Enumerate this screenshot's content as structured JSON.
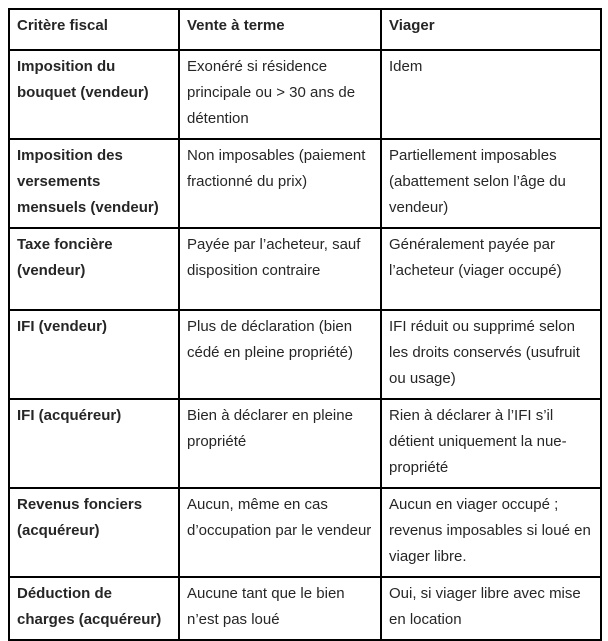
{
  "table": {
    "headers": {
      "critere": "Critère fiscal",
      "vente": "Vente à terme",
      "viager": "Viager"
    },
    "rows": [
      {
        "label": "Imposition du bouquet (vendeur)",
        "vente": "Exonéré si résidence principale ou > 30 ans de détention",
        "viager": "Idem"
      },
      {
        "label": "Imposition des versements mensuels (vendeur)",
        "vente": "Non imposables (paiement fractionné du prix)",
        "viager": "Partiellement imposables (abattement selon l’âge du vendeur)"
      },
      {
        "label": "Taxe foncière (vendeur)",
        "vente": "Payée par l’acheteur, sauf disposition contraire",
        "viager": "Généralement payée par l’acheteur (viager occupé)"
      },
      {
        "label": "IFI (vendeur)",
        "vente": "Plus de déclaration (bien cédé en pleine propriété)",
        "viager": "IFI réduit ou supprimé selon les droits conservés (usufruit ou usage)"
      },
      {
        "label": "IFI (acquéreur)",
        "vente": "Bien à déclarer en pleine propriété",
        "viager": "Rien à déclarer à l’IFI s’il détient uniquement la nue-propriété"
      },
      {
        "label": "Revenus fonciers (acquéreur)",
        "vente": "Aucun, même en cas d’occupation par le vendeur",
        "viager": "Aucun en viager occupé ; revenus imposables si loué en viager libre."
      },
      {
        "label": "Déduction de charges (acquéreur)",
        "vente": "Aucune tant que le bien n’est pas loué",
        "viager": "Oui, si viager libre avec mise en location"
      }
    ],
    "colors": {
      "border": "#000000",
      "text": "#262626",
      "background": "#ffffff"
    }
  }
}
